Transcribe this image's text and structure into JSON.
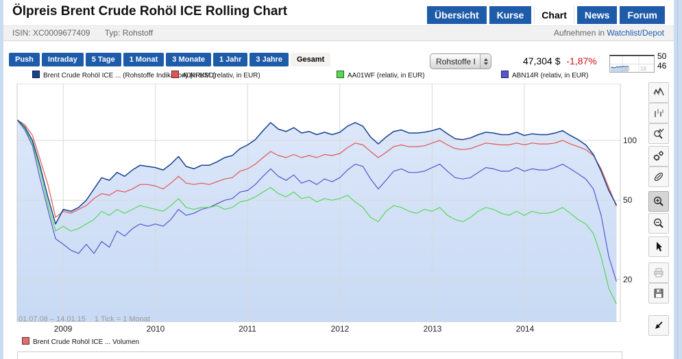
{
  "page": {
    "title": "Ölpreis Brent Crude Rohöl ICE Rolling Chart"
  },
  "header": {
    "tabs": [
      {
        "label": "Übersicht",
        "active": false
      },
      {
        "label": "Kurse",
        "active": false
      },
      {
        "label": "Chart",
        "active": true
      },
      {
        "label": "News",
        "active": false
      },
      {
        "label": "Forum",
        "active": false
      }
    ]
  },
  "meta_bar": {
    "isin_label": "ISIN: XC0009677409",
    "type_label": "Typ: Rohstoff",
    "watchlist_prefix": "Aufnehmen in",
    "watchlist_link": "Watchlist/Depot"
  },
  "controls": {
    "ranges": [
      {
        "label": "Push",
        "active": false
      },
      {
        "label": "Intraday",
        "active": false
      },
      {
        "label": "5 Tage",
        "active": false
      },
      {
        "label": "1 Monat",
        "active": false
      },
      {
        "label": "3 Monate",
        "active": false
      },
      {
        "label": "1 Jahr",
        "active": false
      },
      {
        "label": "3 Jahre",
        "active": false
      },
      {
        "label": "Gesamt",
        "active": true
      }
    ],
    "dropdown": {
      "value": "Rohstoffe I"
    },
    "quote": {
      "price": "47,304 $",
      "change": "-1,87%",
      "change_color": "#cc1111"
    },
    "mini_chart": {
      "high_label": "50",
      "low_label": "46",
      "x_labels": [
        "13",
        "18"
      ],
      "y_range": [
        46,
        50
      ],
      "values": [
        46.9,
        47.1,
        46.8,
        47.0,
        47.2,
        47.0,
        47.3,
        47.1,
        47.4,
        47.2,
        47.3,
        47.3
      ],
      "line_color": "#1e5caa"
    }
  },
  "footer_note": {
    "range": "01.07.08 – 14.01.15",
    "tick": "1 Tick = 1 Monat"
  },
  "volume_legend": {
    "label": "Brent Crude Rohöl ICE ... Volumen",
    "color": "#dd6f6e"
  },
  "toolbar": {
    "icons": [
      "line-chart",
      "bar-chart",
      "indicator-search",
      "settings-gears",
      "compare-link",
      "zoom-in",
      "zoom-out",
      "cursor",
      "print",
      "save",
      "collapse"
    ]
  },
  "chart_data": {
    "type": "line",
    "title": "Brent Crude Rohöl ICE Rolling Chart (Gesamt)",
    "x_start": "01.07.08",
    "x_end": "14.01.15",
    "x_unit": "1 Tick = 1 Monat",
    "months_total": 78.5,
    "x_tick_labels": [
      "2009",
      "2010",
      "2011",
      "2012",
      "2013",
      "2014"
    ],
    "x_tick_month_index": [
      6,
      18,
      30,
      42,
      54,
      66
    ],
    "y_scale": "log",
    "y_tick_values": [
      100,
      50,
      20
    ],
    "y_tick_labels": [
      "100",
      "50",
      "20"
    ],
    "grid": true,
    "area_fill_top": "#dce7f9",
    "area_fill_bottom": "#c8daf4",
    "series": [
      {
        "name": "Brent Crude Rohöl ICE ... (Rohstoffe Indikation) (in USD)",
        "color": "#17418f",
        "fill": true,
        "values": [
          127,
          117,
          100,
          74,
          52,
          38,
          45,
          44,
          46,
          50,
          57,
          65,
          63,
          69,
          66,
          71,
          75,
          74,
          73,
          71,
          76,
          83,
          74,
          72,
          75,
          75,
          78,
          82,
          84,
          91,
          95,
          101,
          112,
          123,
          114,
          111,
          116,
          109,
          111,
          107,
          110,
          107,
          110,
          118,
          123,
          118,
          104,
          96,
          104,
          111,
          113,
          109,
          109,
          110,
          112,
          115,
          108,
          102,
          101,
          103,
          107,
          110,
          109,
          107,
          107,
          110,
          106,
          108,
          107,
          107,
          109,
          112,
          106,
          101,
          95,
          85,
          70,
          56,
          47.3
        ]
      },
      {
        "name": "A0KRKM (relativ, in EUR)",
        "color": "#e25555",
        "fill": false,
        "values": [
          127,
          120,
          106,
          80,
          60,
          41,
          44,
          43,
          45,
          47,
          51,
          54,
          53,
          56,
          55,
          57,
          60,
          60,
          59,
          57,
          61,
          66,
          61,
          60,
          61,
          60,
          62,
          64,
          65,
          70,
          72,
          76,
          82,
          88,
          84,
          82,
          85,
          82,
          84,
          82,
          85,
          84,
          86,
          92,
          97,
          95,
          88,
          82,
          87,
          93,
          95,
          93,
          93,
          94,
          97,
          100,
          95,
          91,
          90,
          91,
          94,
          97,
          96,
          95,
          95,
          97,
          95,
          97,
          96,
          96,
          97,
          100,
          96,
          93,
          90,
          84,
          72,
          58,
          46.5
        ]
      },
      {
        "name": "AA01WF (relativ, in EUR)",
        "color": "#55d855",
        "fill": false,
        "values": [
          127,
          115,
          97,
          70,
          48,
          35,
          37,
          35,
          36,
          38,
          40,
          44,
          42,
          45,
          43,
          45,
          47,
          46,
          45,
          44,
          47,
          51,
          46,
          45,
          46,
          46,
          47,
          45,
          46,
          49,
          50,
          52,
          55,
          58,
          54,
          52,
          55,
          51,
          52,
          49,
          51,
          50,
          51,
          53,
          49,
          46,
          41,
          39,
          44,
          47,
          46,
          44,
          43,
          45,
          44,
          46,
          42,
          40,
          39,
          41,
          44,
          46,
          45,
          43,
          42,
          44,
          42,
          44,
          43,
          43,
          44,
          46,
          43,
          40,
          38,
          34,
          26,
          18,
          15
        ]
      },
      {
        "name": "ABN14R (relativ, in EUR)",
        "color": "#5356cf",
        "fill": false,
        "values": [
          127,
          113,
          94,
          64,
          45,
          32,
          30,
          28,
          27,
          30,
          27,
          31,
          29,
          35,
          33,
          36,
          38,
          37,
          38,
          37,
          40,
          45,
          42,
          43,
          45,
          46,
          48,
          50,
          51,
          55,
          56,
          60,
          66,
          72,
          66,
          63,
          67,
          61,
          63,
          60,
          64,
          62,
          65,
          71,
          76,
          74,
          64,
          57,
          63,
          70,
          72,
          69,
          69,
          70,
          73,
          76,
          70,
          65,
          64,
          65,
          69,
          73,
          72,
          70,
          70,
          73,
          70,
          72,
          71,
          71,
          73,
          76,
          72,
          68,
          64,
          57,
          42,
          26,
          19.5
        ]
      }
    ]
  }
}
